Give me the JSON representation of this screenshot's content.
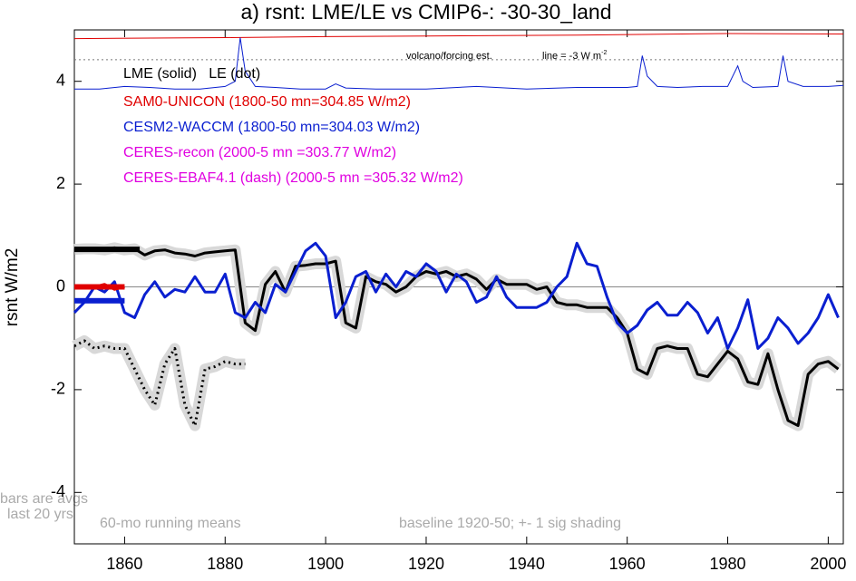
{
  "chart_data": {
    "type": "line",
    "title": "a) rsnt: LME/LE vs CMIP6-: -30-30_land",
    "y_label": "rsnt W/m2",
    "xlim": [
      1850,
      2003
    ],
    "ylim": [
      -5,
      5
    ],
    "xticks": [
      1860,
      1880,
      1900,
      1920,
      1940,
      1960,
      1980,
      2000
    ],
    "yticks": [
      -4,
      -2,
      0,
      2,
      4
    ],
    "zero_line": 0,
    "series": [
      {
        "color": "#000000",
        "style": "solid",
        "shading": true,
        "x": [
          1850,
          1852,
          1854,
          1856,
          1858,
          1860,
          1862,
          1864,
          1866,
          1868,
          1870,
          1872,
          1874,
          1876,
          1878,
          1880,
          1882,
          1884,
          1886,
          1888,
          1890,
          1892,
          1894,
          1896,
          1898,
          1900,
          1902,
          1904,
          1906,
          1908,
          1910,
          1912,
          1914,
          1916,
          1918,
          1920,
          1922,
          1924,
          1926,
          1928,
          1930,
          1932,
          1934,
          1936,
          1938,
          1940,
          1942,
          1944,
          1946,
          1948,
          1950,
          1952,
          1954,
          1956,
          1958,
          1960,
          1962,
          1964,
          1966,
          1968,
          1970,
          1972,
          1974,
          1976,
          1978,
          1980,
          1982,
          1984,
          1986,
          1988,
          1990,
          1992,
          1994,
          1996,
          1998,
          2000,
          2002
        ],
        "values": [
          0.73,
          0.74,
          0.74,
          0.72,
          0.76,
          0.72,
          0.74,
          0.62,
          0.7,
          0.72,
          0.66,
          0.64,
          0.6,
          0.66,
          0.68,
          0.7,
          0.72,
          -0.7,
          -0.85,
          0.05,
          0.3,
          -0.1,
          0.4,
          0.42,
          0.45,
          0.45,
          0.5,
          -0.7,
          -0.8,
          0.2,
          0.1,
          0.05,
          -0.1,
          0.0,
          0.2,
          0.3,
          0.25,
          0.3,
          0.2,
          0.25,
          0.15,
          -0.05,
          0.15,
          0.05,
          0.05,
          0.05,
          -0.05,
          0.0,
          -0.3,
          -0.35,
          -0.35,
          -0.4,
          -0.4,
          -0.4,
          -0.6,
          -0.9,
          -1.6,
          -1.7,
          -1.2,
          -1.15,
          -1.2,
          -1.2,
          -1.7,
          -1.75,
          -1.5,
          -1.25,
          -1.4,
          -1.85,
          -1.9,
          -1.3,
          -2.0,
          -2.6,
          -2.7,
          -1.7,
          -1.5,
          -1.45,
          -1.6
        ]
      },
      {
        "color": "#0a1fd0",
        "style": "solid",
        "shading": false,
        "x": [
          1850,
          1852,
          1854,
          1856,
          1858,
          1860,
          1862,
          1864,
          1866,
          1868,
          1870,
          1872,
          1874,
          1876,
          1878,
          1880,
          1882,
          1884,
          1886,
          1888,
          1890,
          1892,
          1894,
          1896,
          1898,
          1900,
          1902,
          1904,
          1906,
          1908,
          1910,
          1912,
          1914,
          1916,
          1918,
          1920,
          1922,
          1924,
          1926,
          1928,
          1930,
          1932,
          1934,
          1936,
          1938,
          1940,
          1942,
          1944,
          1946,
          1948,
          1950,
          1952,
          1954,
          1956,
          1958,
          1960,
          1962,
          1964,
          1966,
          1968,
          1970,
          1972,
          1974,
          1976,
          1978,
          1980,
          1982,
          1984,
          1986,
          1988,
          1990,
          1992,
          1994,
          1996,
          1998,
          2000,
          2002
        ],
        "values": [
          -0.5,
          -0.3,
          0.0,
          -0.1,
          0.1,
          -0.5,
          -0.6,
          -0.15,
          0.1,
          -0.2,
          -0.05,
          -0.1,
          0.2,
          -0.1,
          -0.1,
          0.25,
          -0.5,
          -0.6,
          -0.3,
          -0.5,
          0.05,
          -0.1,
          0.3,
          0.7,
          0.85,
          0.6,
          -0.6,
          -0.3,
          0.2,
          0.3,
          -0.1,
          0.25,
          0.0,
          0.3,
          0.2,
          0.45,
          0.3,
          -0.1,
          0.25,
          0.1,
          -0.3,
          -0.2,
          0.2,
          -0.2,
          -0.4,
          -0.4,
          -0.4,
          -0.3,
          0.0,
          0.2,
          0.85,
          0.45,
          0.4,
          -0.2,
          -0.7,
          -0.9,
          -0.75,
          -0.45,
          -0.3,
          -0.55,
          -0.55,
          -0.3,
          -0.5,
          -0.9,
          -0.6,
          -1.2,
          -0.8,
          -0.25,
          -1.2,
          -1.0,
          -0.6,
          -0.8,
          -1.1,
          -0.9,
          -0.6,
          -0.15,
          -0.6
        ]
      },
      {
        "color": "#000000",
        "style": "dot",
        "shading": true,
        "x": [
          1850,
          1852,
          1854,
          1856,
          1858,
          1860,
          1862,
          1864,
          1866,
          1868,
          1870,
          1872,
          1874,
          1876,
          1878,
          1880,
          1882,
          1884
        ],
        "values": [
          -1.15,
          -1.05,
          -1.2,
          -1.15,
          -1.2,
          -1.2,
          -1.6,
          -2.0,
          -2.3,
          -1.5,
          -1.2,
          -2.3,
          -2.7,
          -1.6,
          -1.55,
          -1.45,
          -1.5,
          -1.5
        ]
      },
      {
        "color": "#e00000",
        "style": "solid",
        "shading": false,
        "x": [
          1850,
          1852,
          1854,
          1856,
          1858,
          1860
        ],
        "values": [
          0.0,
          0.02,
          0.0,
          0.05,
          -0.05,
          0.0
        ]
      }
    ],
    "forcing": [
      {
        "color": "#e00000",
        "x": [
          1850,
          1880,
          1900,
          1920,
          1950,
          1980,
          2003
        ],
        "values": [
          4.83,
          4.85,
          4.87,
          4.88,
          4.9,
          4.93,
          4.92
        ]
      },
      {
        "color": "#0a1fd0",
        "x": [
          1850,
          1855,
          1860,
          1865,
          1870,
          1875,
          1880,
          1882,
          1883,
          1884,
          1886,
          1890,
          1895,
          1900,
          1902,
          1904,
          1910,
          1920,
          1930,
          1940,
          1950,
          1960,
          1962,
          1963,
          1964,
          1966,
          1970,
          1975,
          1980,
          1982,
          1983,
          1985,
          1990,
          1991,
          1992,
          1995,
          2000,
          2003
        ],
        "values": [
          3.85,
          3.85,
          3.9,
          3.88,
          3.85,
          3.85,
          3.9,
          4.0,
          4.85,
          4.2,
          3.9,
          3.88,
          3.85,
          3.85,
          3.95,
          3.87,
          3.85,
          3.85,
          3.9,
          3.85,
          3.88,
          3.88,
          3.9,
          4.5,
          4.1,
          3.9,
          3.88,
          3.9,
          3.9,
          4.3,
          4.0,
          3.88,
          3.9,
          4.5,
          4.0,
          3.9,
          3.9,
          3.92
        ]
      }
    ],
    "reference_value": 4.42,
    "bars": [
      {
        "color": "#000000",
        "value": 0.73
      },
      {
        "color": "#e00000",
        "value": 0.0
      },
      {
        "color": "#0a1fd0",
        "value": -0.27
      }
    ],
    "legend": [
      {
        "text": "LME (solid)   LE (dot)",
        "color": "#000000"
      },
      {
        "text": "SAM0-UNICON (1800-50 mn=304.85 W/m2)",
        "color": "#e00000"
      },
      {
        "text": "CESM2-WACCM (1800-50 mn=304.03 W/m2)",
        "color": "#0a1fd0"
      },
      {
        "text": "CERES-recon (2000-5 mn =303.77 W/m2)",
        "color": "#e000e0"
      },
      {
        "text": "CERES-EBAF4.1 (dash) (2000-5 mn =305.32 W/m2)",
        "color": "#e000e0"
      }
    ],
    "annotations": {
      "volcano": "volcano/forcing est.",
      "line_note": "line = -3 W m",
      "line_note_sup": "-2",
      "bars_note_1": "bars are avgs",
      "bars_note_2": "last 20 yrs",
      "running": "60-mo running means",
      "baseline": "baseline 1920-50; +- 1 sig shading"
    }
  }
}
